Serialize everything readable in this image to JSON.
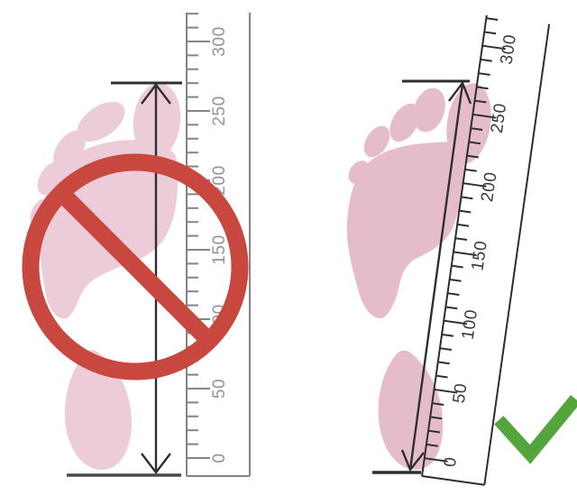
{
  "figure": {
    "description": "foot-length-measurement-diagram",
    "left_panel": {
      "method": "incorrect",
      "symbol": "prohibition-icon"
    },
    "right_panel": {
      "method": "correct",
      "symbol": "checkmark-icon"
    }
  },
  "rulers": {
    "left": {
      "orientation": "vertical",
      "labels": [
        "0",
        "50",
        "100",
        "150",
        "200",
        "250",
        "300"
      ]
    },
    "right": {
      "orientation": "tilted",
      "labels": [
        "0",
        "50",
        "100",
        "150",
        "200",
        "250",
        "300"
      ]
    }
  },
  "colors": {
    "background": "#ffffff",
    "footprint_left_pink": "#ecccd8",
    "footprint_right_pink": "#e5bccb",
    "prohibition_red": "#c8473e",
    "checkmark_green": "#55a53d",
    "ruler_left_line": "#848484",
    "ruler_left_text": "#949494",
    "ruler_right_line": "#2d2d30",
    "ruler_right_text": "#3a3a3a",
    "measure_dark": "#2f2f31",
    "baseline_dark": "#4a4a4c"
  }
}
